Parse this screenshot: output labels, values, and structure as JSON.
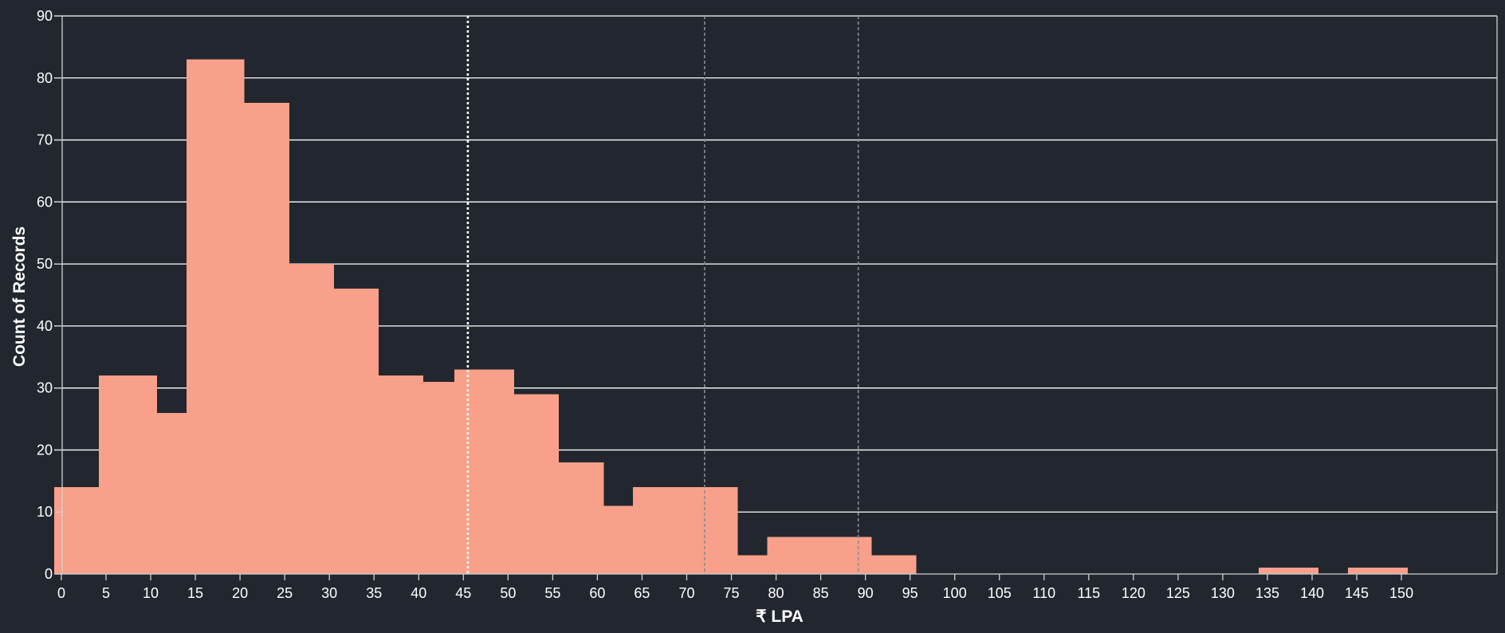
{
  "chart_data": {
    "type": "bar",
    "xlabel": "₹ LPA",
    "ylabel": "Count of Records",
    "xlim": [
      -0.8,
      160.7
    ],
    "ylim": [
      0,
      90
    ],
    "x_ticks": [
      0,
      5,
      10,
      15,
      20,
      25,
      30,
      35,
      40,
      45,
      50,
      55,
      60,
      65,
      70,
      75,
      80,
      85,
      90,
      95,
      100,
      105,
      110,
      115,
      120,
      125,
      130,
      135,
      140,
      145,
      150
    ],
    "y_ticks": [
      0,
      10,
      20,
      30,
      40,
      50,
      60,
      70,
      80,
      90
    ],
    "grid": true,
    "bins": [
      {
        "x0": -0.8,
        "x1": 4.2,
        "count": 14
      },
      {
        "x0": 4.2,
        "x1": 7.5,
        "count": 32
      },
      {
        "x0": 7.5,
        "x1": 10.7,
        "count": 32
      },
      {
        "x0": 10.7,
        "x1": 14.0,
        "count": 26
      },
      {
        "x0": 14.0,
        "x1": 17.2,
        "count": 83
      },
      {
        "x0": 17.2,
        "x1": 20.5,
        "count": 83
      },
      {
        "x0": 20.5,
        "x1": 25.5,
        "count": 76
      },
      {
        "x0": 25.5,
        "x1": 30.5,
        "count": 50
      },
      {
        "x0": 30.5,
        "x1": 35.5,
        "count": 46
      },
      {
        "x0": 35.5,
        "x1": 40.5,
        "count": 32
      },
      {
        "x0": 40.5,
        "x1": 44.0,
        "count": 31
      },
      {
        "x0": 44.0,
        "x1": 47.2,
        "count": 33
      },
      {
        "x0": 47.2,
        "x1": 50.7,
        "count": 33
      },
      {
        "x0": 50.7,
        "x1": 55.7,
        "count": 29
      },
      {
        "x0": 55.7,
        "x1": 60.7,
        "count": 18
      },
      {
        "x0": 60.7,
        "x1": 64.0,
        "count": 11
      },
      {
        "x0": 64.0,
        "x1": 67.2,
        "count": 14
      },
      {
        "x0": 67.2,
        "x1": 70.7,
        "count": 14
      },
      {
        "x0": 70.7,
        "x1": 75.7,
        "count": 14
      },
      {
        "x0": 75.7,
        "x1": 79.0,
        "count": 3
      },
      {
        "x0": 79.0,
        "x1": 84.0,
        "count": 6
      },
      {
        "x0": 84.0,
        "x1": 90.7,
        "count": 6
      },
      {
        "x0": 90.7,
        "x1": 95.7,
        "count": 3
      },
      {
        "x0": 134.0,
        "x1": 140.7,
        "count": 1
      },
      {
        "x0": 144.0,
        "x1": 150.7,
        "count": 1
      }
    ],
    "reference_lines": [
      {
        "x": 45.5,
        "style": "dotted",
        "color": "#ffffff"
      },
      {
        "x": 72.0,
        "style": "dashed",
        "color": "#8a8d93"
      },
      {
        "x": 89.2,
        "style": "dashed",
        "color": "#8a8d93"
      }
    ],
    "colors": {
      "background": "#22262e",
      "bar": "#f8a089",
      "grid": "#ffffff",
      "axis": "#cfd0d2",
      "text": "#ffffff"
    }
  }
}
